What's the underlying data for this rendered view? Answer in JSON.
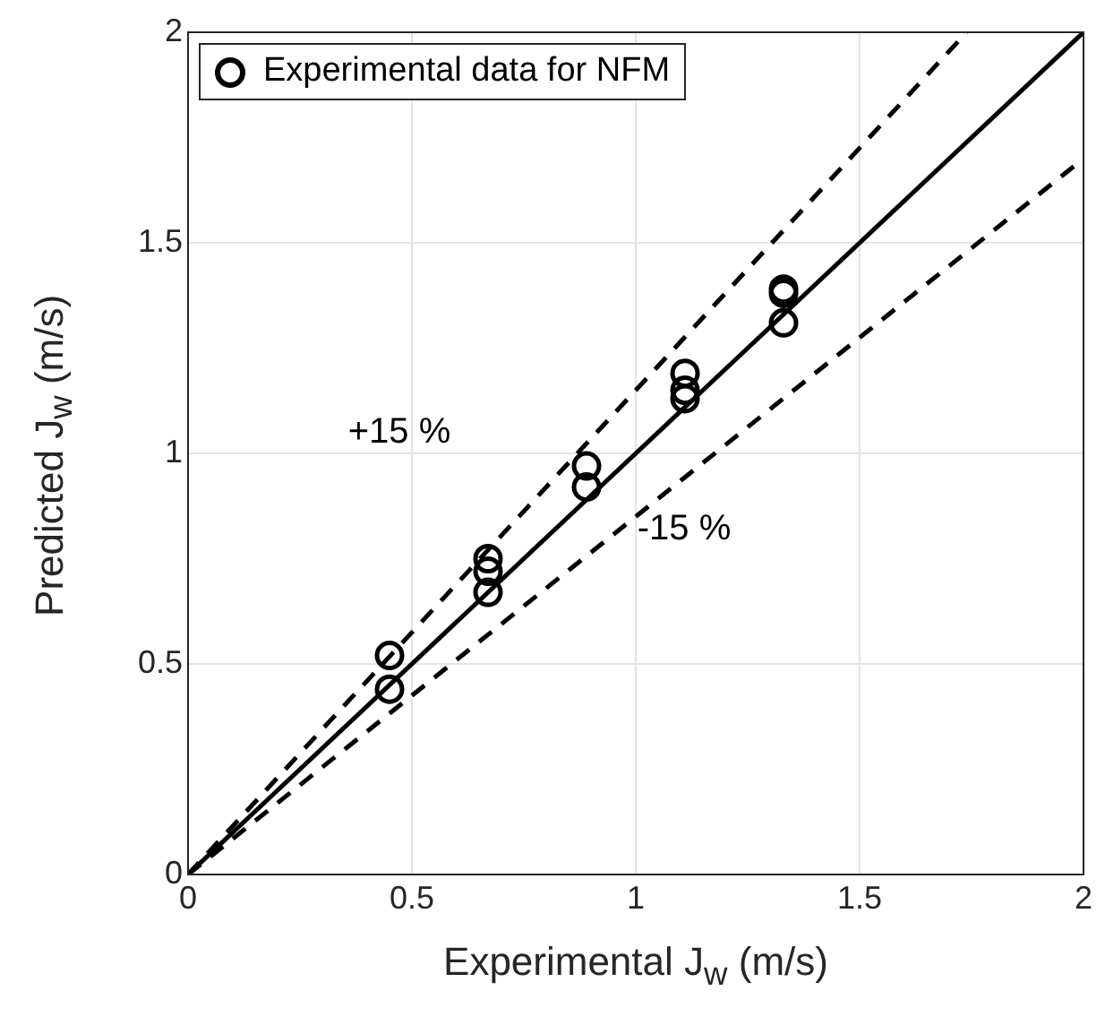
{
  "chart_data": {
    "type": "scatter",
    "xlabel": "Experimental J$_{w}$ (m/s)",
    "ylabel": "Predicted J$_{w}$ (m/s)",
    "xlim": [
      0,
      2
    ],
    "ylim": [
      0,
      2
    ],
    "xticks": [
      0,
      0.5,
      1,
      1.5,
      2
    ],
    "yticks": [
      0,
      0.5,
      1,
      1.5,
      2
    ],
    "grid": true,
    "legend": "top left",
    "marker": "circle",
    "series": [
      {
        "name": "Experimental data for NFM",
        "color": "#000000",
        "x": [
          0.45,
          0.45,
          0.67,
          0.67,
          0.67,
          0.89,
          0.89,
          1.11,
          1.11,
          1.11,
          1.33,
          1.33,
          1.33
        ],
        "values": [
          0.52,
          0.44,
          0.75,
          0.72,
          0.67,
          0.97,
          0.92,
          1.19,
          1.15,
          1.13,
          1.39,
          1.38,
          1.31
        ]
      },
      {
        "type": "line",
        "color": "#000000",
        "line_style": "solid",
        "marker": "none",
        "x": [
          0,
          2
        ],
        "values": [
          0,
          2
        ]
      },
      {
        "type": "line",
        "color": "#000000",
        "line_style": "dashed",
        "marker": "none",
        "x": [
          0,
          1.739
        ],
        "values": [
          0,
          2
        ]
      },
      {
        "type": "line",
        "color": "#000000",
        "line_style": "dashed",
        "marker": "none",
        "x": [
          0,
          2
        ],
        "values": [
          0,
          1.7
        ]
      }
    ],
    "annotations": [
      "+15 %",
      "-15 %"
    ]
  }
}
